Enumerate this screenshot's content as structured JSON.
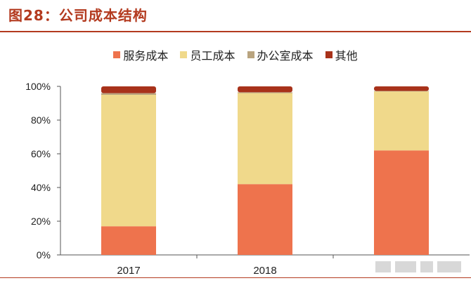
{
  "header": {
    "title": "图28：公司成本结构"
  },
  "chart_data": {
    "type": "bar",
    "stacked": true,
    "categories": [
      "2017",
      "2018",
      ""
    ],
    "series": [
      {
        "name": "服务成本",
        "color": "#ee734d",
        "values": [
          17,
          42,
          62
        ]
      },
      {
        "name": "员工成本",
        "color": "#f0d98b",
        "values": [
          78,
          54,
          35
        ]
      },
      {
        "name": "办公室成本",
        "color": "#b9a47f",
        "values": [
          1,
          0.5,
          0.3
        ]
      },
      {
        "name": "其他",
        "color": "#a8321a",
        "values": [
          4,
          3.5,
          2.7
        ]
      }
    ],
    "ylim": [
      0,
      100
    ],
    "yticks": [
      "0%",
      "20%",
      "40%",
      "60%",
      "80%",
      "100%"
    ],
    "legend_position": "top",
    "grid": false
  }
}
